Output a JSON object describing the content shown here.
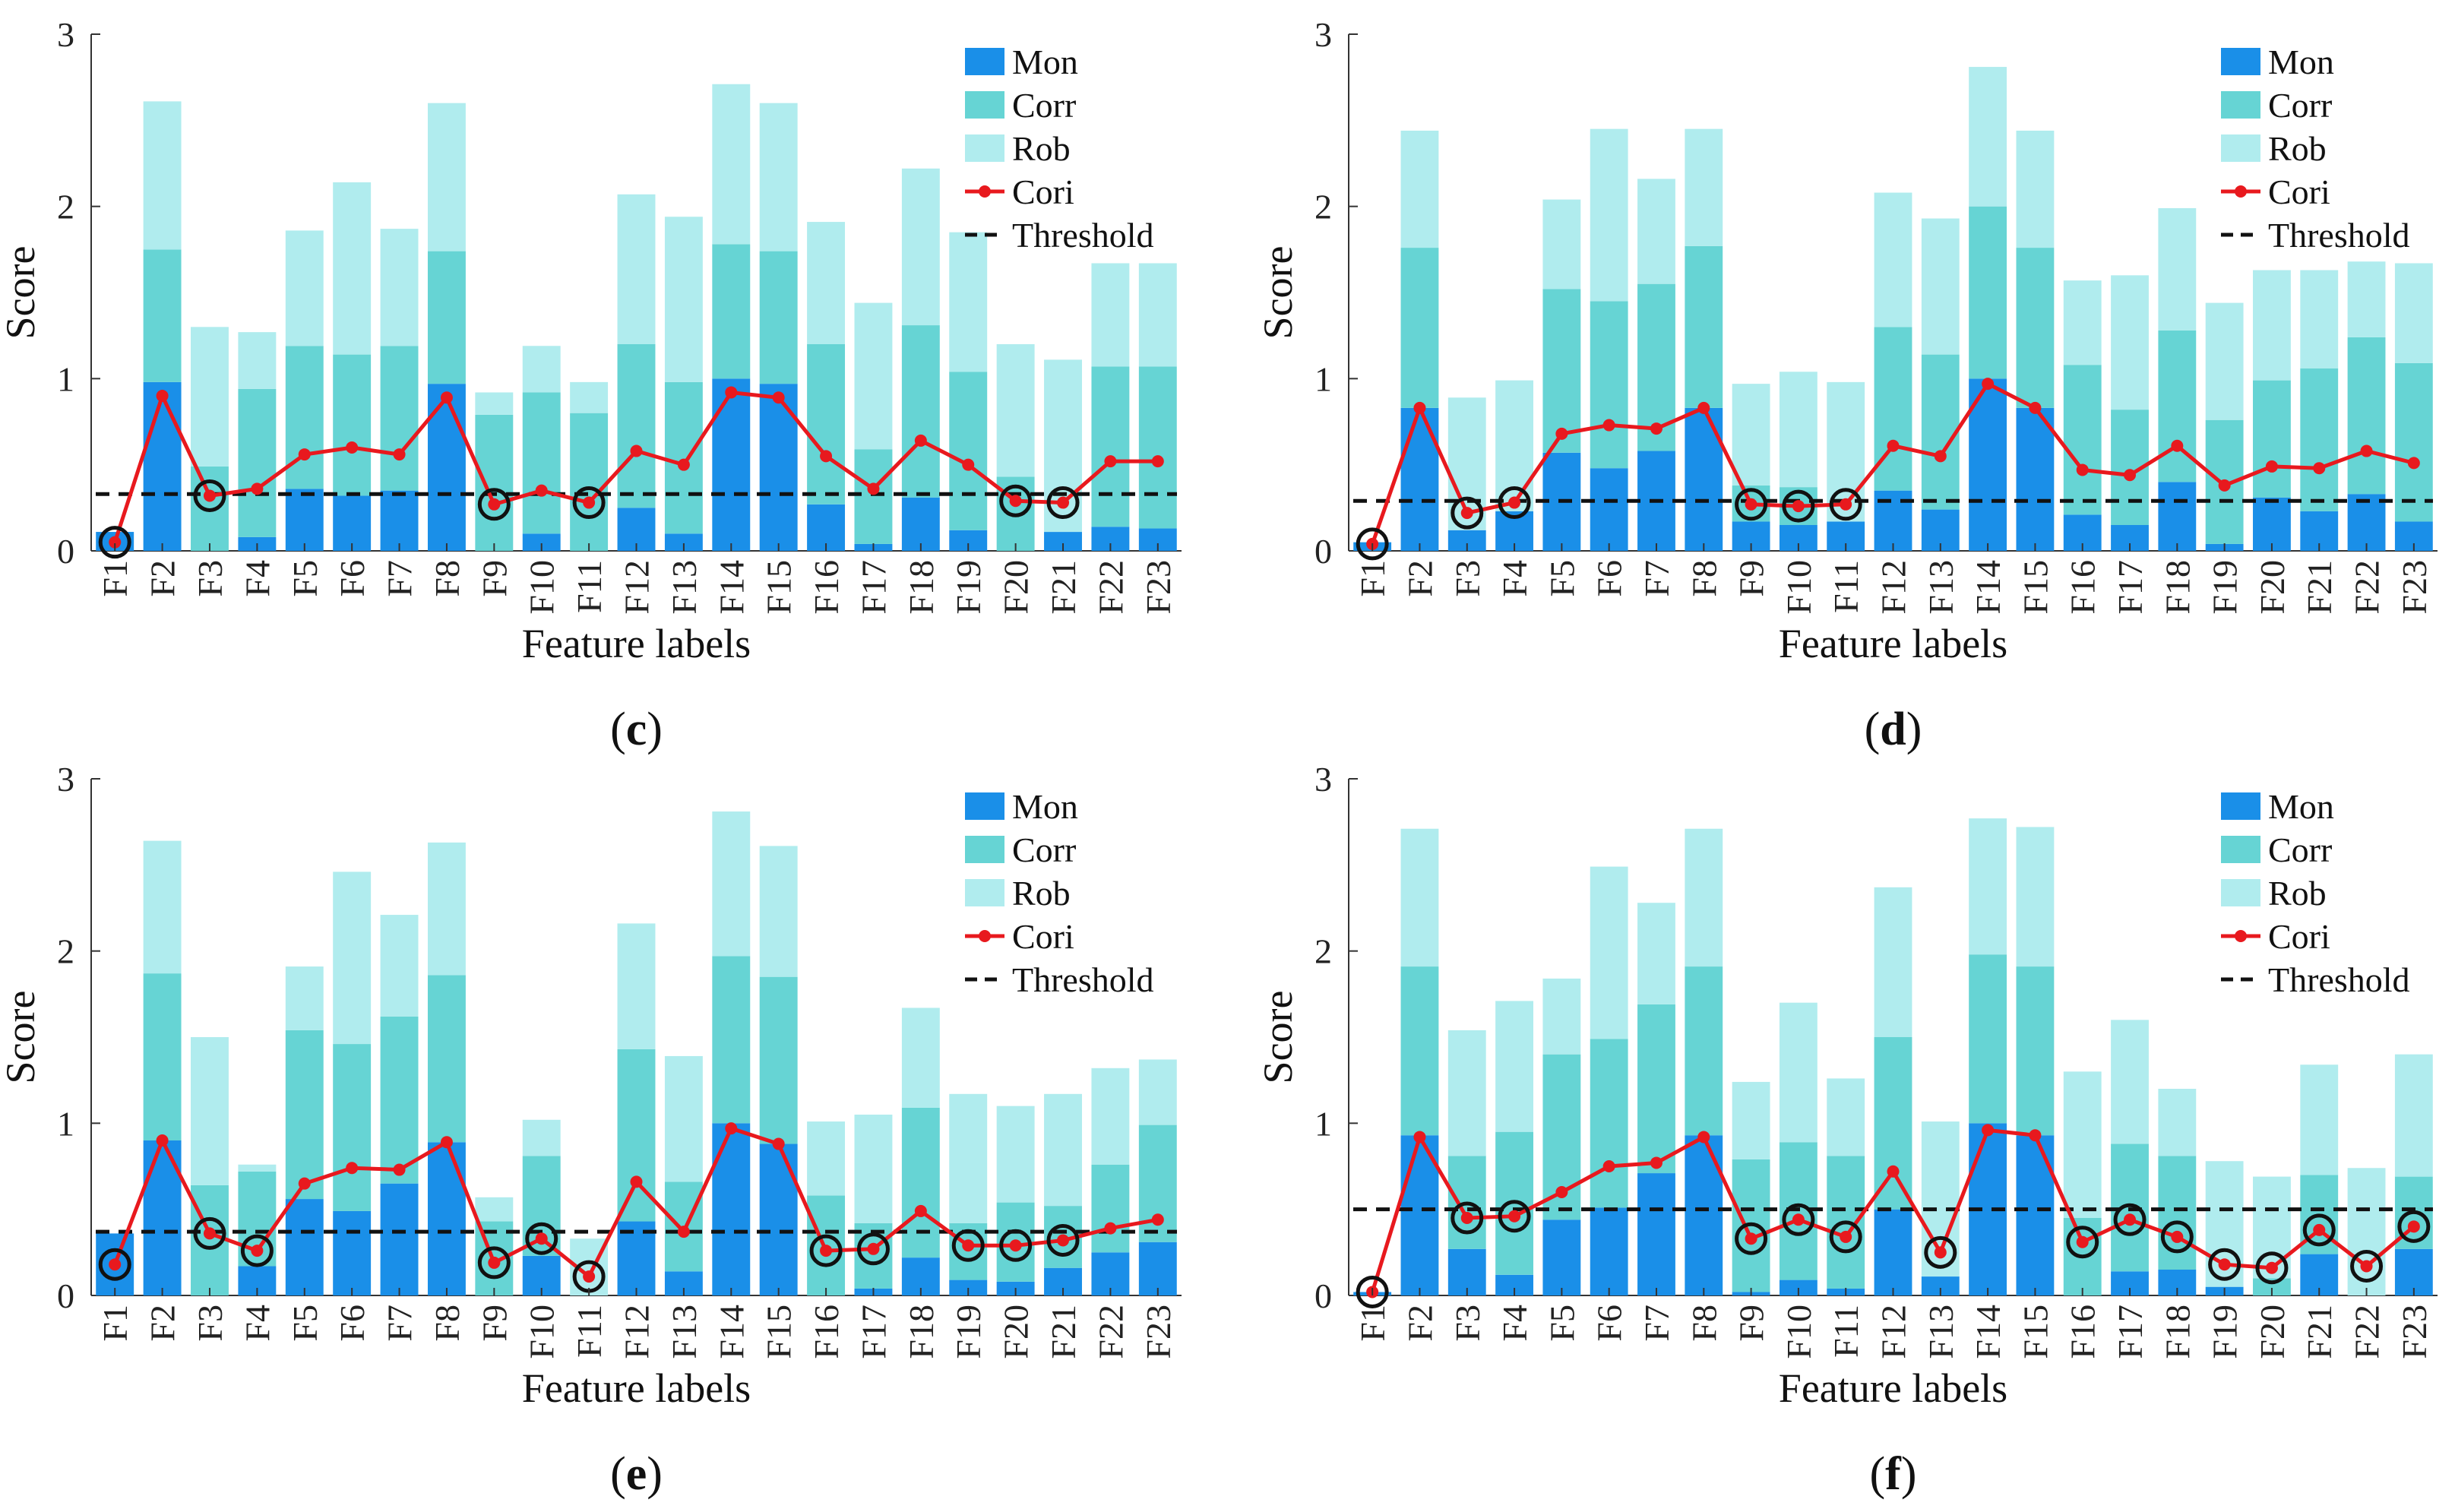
{
  "colors": {
    "mon": "#1a8fe8",
    "corr": "#66d4d4",
    "rob": "#b0ecee",
    "cori": "#e8191e",
    "threshold": "#111111",
    "circle": "#111111"
  },
  "chart_data": [
    {
      "type": "bar",
      "stacked": true,
      "panel": "c",
      "xlabel": "Feature labels",
      "ylabel": "Score",
      "ylim": [
        0,
        3
      ],
      "yticks": [
        "0",
        "1",
        "2",
        "3"
      ],
      "categories": [
        "F1",
        "F2",
        "F3",
        "F4",
        "F5",
        "F6",
        "F7",
        "F8",
        "F9",
        "F10",
        "F11",
        "F12",
        "F13",
        "F14",
        "F15",
        "F16",
        "F17",
        "F18",
        "F19",
        "F20",
        "F21",
        "F22",
        "F23"
      ],
      "series": [
        {
          "name": "Mon",
          "values": [
            0.11,
            0.98,
            0.0,
            0.08,
            0.36,
            0.32,
            0.35,
            0.97,
            0.0,
            0.1,
            0.0,
            0.25,
            0.1,
            1.0,
            0.97,
            0.27,
            0.04,
            0.31,
            0.12,
            0.0,
            0.11,
            0.14,
            0.13
          ]
        },
        {
          "name": "Corr",
          "values": [
            0.0,
            0.77,
            0.49,
            0.86,
            0.83,
            0.82,
            0.84,
            0.77,
            0.79,
            0.82,
            0.8,
            0.95,
            0.88,
            0.78,
            0.77,
            0.93,
            0.55,
            1.0,
            0.92,
            0.43,
            0.0,
            0.93,
            0.94
          ]
        },
        {
          "name": "Rob",
          "values": [
            0.0,
            0.86,
            0.81,
            0.33,
            0.67,
            1.0,
            0.68,
            0.86,
            0.13,
            0.27,
            0.18,
            0.87,
            0.96,
            0.93,
            0.86,
            0.71,
            0.85,
            0.91,
            0.81,
            0.77,
            1.0,
            0.6,
            0.6
          ]
        }
      ],
      "line": {
        "name": "Cori",
        "values": [
          0.05,
          0.9,
          0.32,
          0.36,
          0.56,
          0.6,
          0.56,
          0.89,
          0.27,
          0.35,
          0.28,
          0.58,
          0.5,
          0.92,
          0.89,
          0.55,
          0.36,
          0.64,
          0.5,
          0.29,
          0.28,
          0.52,
          0.52
        ]
      },
      "threshold": {
        "name": "Threshold",
        "value": 0.33
      },
      "circled": [
        "F1",
        "F3",
        "F9",
        "F11",
        "F20",
        "F21"
      ],
      "legend": [
        "Mon",
        "Corr",
        "Rob",
        "Cori",
        "Threshold"
      ],
      "legend_position": "top-right"
    },
    {
      "type": "bar",
      "stacked": true,
      "panel": "d",
      "xlabel": "Feature labels",
      "ylabel": "Score",
      "ylim": [
        0,
        3
      ],
      "yticks": [
        "0",
        "1",
        "2",
        "3"
      ],
      "categories": [
        "F1",
        "F2",
        "F3",
        "F4",
        "F5",
        "F6",
        "F7",
        "F8",
        "F9",
        "F10",
        "F11",
        "F12",
        "F13",
        "F14",
        "F15",
        "F16",
        "F17",
        "F18",
        "F19",
        "F20",
        "F21",
        "F22",
        "F23"
      ],
      "series": [
        {
          "name": "Mon",
          "values": [
            0.05,
            0.83,
            0.12,
            0.23,
            0.57,
            0.48,
            0.58,
            0.83,
            0.17,
            0.15,
            0.17,
            0.35,
            0.24,
            1.0,
            0.83,
            0.21,
            0.15,
            0.4,
            0.04,
            0.31,
            0.23,
            0.33,
            0.17
          ]
        },
        {
          "name": "Corr",
          "values": [
            0.0,
            0.93,
            0.0,
            0.0,
            0.95,
            0.97,
            0.97,
            0.94,
            0.21,
            0.22,
            0.0,
            0.95,
            0.9,
            1.0,
            0.93,
            0.87,
            0.67,
            0.88,
            0.72,
            0.68,
            0.83,
            0.91,
            0.92
          ]
        },
        {
          "name": "Rob",
          "values": [
            0.0,
            0.68,
            0.77,
            0.76,
            0.52,
            1.0,
            0.61,
            0.68,
            0.59,
            0.67,
            0.81,
            0.78,
            0.79,
            0.81,
            0.68,
            0.49,
            0.78,
            0.71,
            0.68,
            0.64,
            0.57,
            0.44,
            0.58
          ]
        }
      ],
      "line": {
        "name": "Cori",
        "values": [
          0.04,
          0.83,
          0.22,
          0.28,
          0.68,
          0.73,
          0.71,
          0.83,
          0.27,
          0.26,
          0.27,
          0.61,
          0.55,
          0.97,
          0.83,
          0.47,
          0.44,
          0.61,
          0.38,
          0.49,
          0.48,
          0.58,
          0.51
        ]
      },
      "threshold": {
        "name": "Threshold",
        "value": 0.29
      },
      "circled": [
        "F1",
        "F3",
        "F4",
        "F9",
        "F10",
        "F11"
      ],
      "legend": [
        "Mon",
        "Corr",
        "Rob",
        "Cori",
        "Threshold"
      ],
      "legend_position": "top-right"
    },
    {
      "type": "bar",
      "stacked": true,
      "panel": "e",
      "xlabel": "Feature labels",
      "ylabel": "Score",
      "ylim": [
        0,
        3
      ],
      "yticks": [
        "0",
        "1",
        "2",
        "3"
      ],
      "categories": [
        "F1",
        "F2",
        "F3",
        "F4",
        "F5",
        "F6",
        "F7",
        "F8",
        "F9",
        "F10",
        "F11",
        "F12",
        "F13",
        "F14",
        "F15",
        "F16",
        "F17",
        "F18",
        "F19",
        "F20",
        "F21",
        "F22",
        "F23"
      ],
      "series": [
        {
          "name": "Mon",
          "values": [
            0.36,
            0.9,
            0.0,
            0.17,
            0.56,
            0.49,
            0.65,
            0.89,
            0.0,
            0.23,
            0.0,
            0.43,
            0.14,
            1.0,
            0.88,
            0.0,
            0.04,
            0.22,
            0.09,
            0.08,
            0.16,
            0.25,
            0.31
          ]
        },
        {
          "name": "Corr",
          "values": [
            0.0,
            0.97,
            0.64,
            0.55,
            0.98,
            0.97,
            0.97,
            0.97,
            0.43,
            0.58,
            0.0,
            1.0,
            0.52,
            0.97,
            0.97,
            0.58,
            0.38,
            0.87,
            0.33,
            0.46,
            0.36,
            0.51,
            0.68
          ]
        },
        {
          "name": "Rob",
          "values": [
            0.0,
            0.77,
            0.86,
            0.04,
            0.37,
            1.0,
            0.59,
            0.77,
            0.14,
            0.21,
            0.33,
            0.73,
            0.73,
            0.84,
            0.76,
            0.43,
            0.63,
            0.58,
            0.75,
            0.56,
            0.65,
            0.56,
            0.38
          ]
        }
      ],
      "line": {
        "name": "Cori",
        "values": [
          0.18,
          0.9,
          0.36,
          0.26,
          0.65,
          0.74,
          0.73,
          0.89,
          0.19,
          0.33,
          0.11,
          0.66,
          0.37,
          0.97,
          0.88,
          0.26,
          0.27,
          0.49,
          0.29,
          0.29,
          0.32,
          0.39,
          0.44
        ]
      },
      "threshold": {
        "name": "Threshold",
        "value": 0.37
      },
      "circled": [
        "F1",
        "F3",
        "F4",
        "F9",
        "F10",
        "F11",
        "F16",
        "F17",
        "F19",
        "F20",
        "F21"
      ],
      "legend": [
        "Mon",
        "Corr",
        "Rob",
        "Cori",
        "Threshold"
      ],
      "legend_position": "top-right"
    },
    {
      "type": "bar",
      "stacked": true,
      "panel": "f",
      "xlabel": "Feature labels",
      "ylabel": "Score",
      "ylim": [
        0,
        3
      ],
      "yticks": [
        "0",
        "1",
        "2",
        "3"
      ],
      "categories": [
        "F1",
        "F2",
        "F3",
        "F4",
        "F5",
        "F6",
        "F7",
        "F8",
        "F9",
        "F10",
        "F11",
        "F12",
        "F13",
        "F14",
        "F15",
        "F16",
        "F17",
        "F18",
        "F19",
        "F20",
        "F21",
        "F22",
        "F23"
      ],
      "series": [
        {
          "name": "Mon",
          "values": [
            0.02,
            0.93,
            0.27,
            0.12,
            0.44,
            0.51,
            0.71,
            0.93,
            0.02,
            0.09,
            0.04,
            0.5,
            0.11,
            1.0,
            0.93,
            0.0,
            0.14,
            0.15,
            0.05,
            0.0,
            0.24,
            0.0,
            0.27
          ]
        },
        {
          "name": "Corr",
          "values": [
            0.0,
            0.98,
            0.54,
            0.83,
            0.96,
            0.98,
            0.98,
            0.98,
            0.77,
            0.8,
            0.77,
            1.0,
            0.0,
            0.98,
            0.98,
            0.45,
            0.74,
            0.66,
            0.0,
            0.1,
            0.46,
            0.0,
            0.42
          ]
        },
        {
          "name": "Rob",
          "values": [
            0.0,
            0.8,
            0.73,
            0.76,
            0.44,
            1.0,
            0.59,
            0.8,
            0.45,
            0.81,
            0.45,
            0.87,
            0.9,
            0.79,
            0.81,
            0.85,
            0.72,
            0.39,
            0.73,
            0.59,
            0.64,
            0.74,
            0.71
          ]
        }
      ],
      "line": {
        "name": "Cori",
        "values": [
          0.02,
          0.92,
          0.45,
          0.46,
          0.6,
          0.75,
          0.77,
          0.92,
          0.33,
          0.44,
          0.34,
          0.72,
          0.25,
          0.96,
          0.93,
          0.31,
          0.44,
          0.34,
          0.18,
          0.16,
          0.38,
          0.17,
          0.4
        ]
      },
      "threshold": {
        "name": "Threshold",
        "value": 0.5
      },
      "circled": [
        "F1",
        "F3",
        "F4",
        "F9",
        "F10",
        "F11",
        "F13",
        "F16",
        "F17",
        "F18",
        "F19",
        "F20",
        "F21",
        "F22",
        "F23"
      ],
      "legend": [
        "Mon",
        "Corr",
        "Rob",
        "Cori",
        "Threshold"
      ],
      "legend_position": "top-right"
    }
  ]
}
